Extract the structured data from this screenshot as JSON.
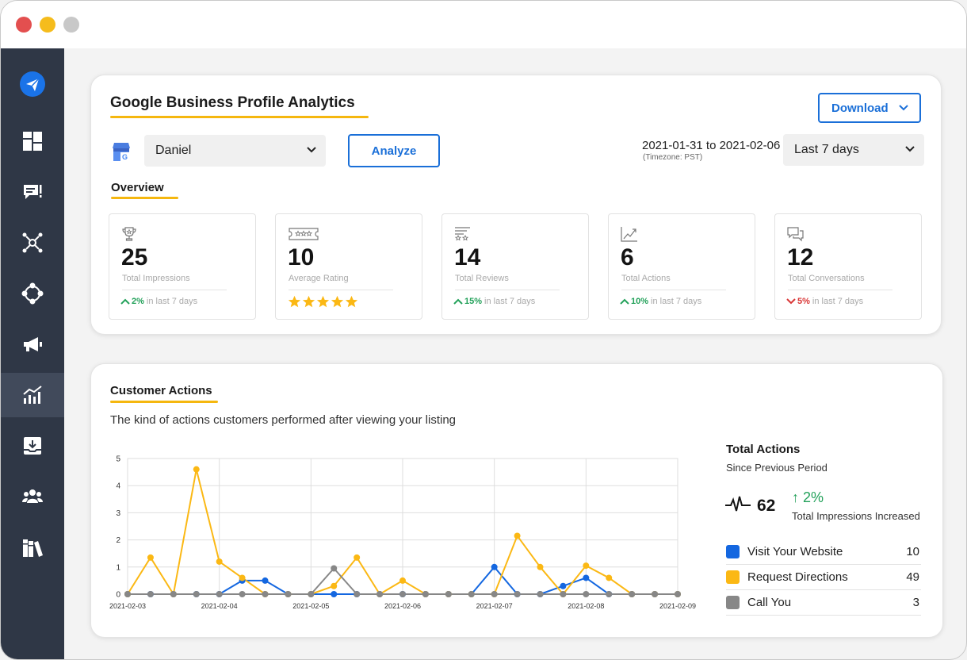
{
  "header": {
    "title": "Google Business Profile Analytics",
    "download_label": "Download"
  },
  "filters": {
    "profile_value": "Daniel",
    "analyze_label": "Analyze",
    "date_range": "2021-01-31 to 2021-02-06",
    "timezone": "(Timezone: PST)",
    "period_value": "Last 7 days"
  },
  "overview": {
    "title": "Overview",
    "stats": [
      {
        "value": "25",
        "label": "Total Impressions",
        "trend": "up",
        "pct": "2%",
        "suffix": "in last 7 days",
        "icon": "trophy-icon"
      },
      {
        "value": "10",
        "label": "Average Rating",
        "stars": 5,
        "icon": "rating-badge-icon"
      },
      {
        "value": "14",
        "label": "Total Reviews",
        "trend": "up",
        "pct": "15%",
        "suffix": "in last 7 days",
        "icon": "reviews-icon"
      },
      {
        "value": "6",
        "label": "Total Actions",
        "trend": "up",
        "pct": "10%",
        "suffix": "in last 7 days",
        "icon": "line-chart-icon"
      },
      {
        "value": "12",
        "label": "Total Conversations",
        "trend": "down",
        "pct": "5%",
        "suffix": "in last 7 days",
        "icon": "chat-bubbles-icon"
      }
    ]
  },
  "customer_actions": {
    "title": "Customer Actions",
    "subtitle": "The kind of actions customers performed after viewing your listing",
    "summary": {
      "title": "Total Actions",
      "subtitle": "Since Previous Period",
      "total": "62",
      "change": "↑ 2%",
      "change_label": "Total Impressions Increased"
    },
    "legend": [
      {
        "name": "Visit Your Website",
        "value": "10",
        "color": "#1467e0"
      },
      {
        "name": "Request Directions",
        "value": "49",
        "color": "#fbb814"
      },
      {
        "name": "Call You",
        "value": "3",
        "color": "#878787"
      }
    ]
  },
  "colors": {
    "accent": "#1a6fd8",
    "underline": "#f5b70f",
    "sidebar": "#2f3746",
    "up": "#23a15a",
    "down": "#d93636"
  },
  "chart_data": {
    "type": "line",
    "x_tick_labels": [
      "2021-02-03",
      "2021-02-04",
      "2021-02-05",
      "2021-02-06",
      "2021-02-07",
      "2021-02-08",
      "2021-02-09"
    ],
    "x_range": [
      0,
      24
    ],
    "ylim": [
      0,
      5
    ],
    "yticks": [
      0,
      1,
      2,
      3,
      4,
      5
    ],
    "grid": true,
    "series": [
      {
        "name": "Visit Your Website",
        "color": "#1467e0",
        "values": [
          0,
          0,
          0,
          0,
          0,
          0.5,
          0.5,
          0,
          0,
          0,
          0,
          0,
          0,
          0,
          0,
          0,
          1,
          0,
          0,
          0.3,
          0.6,
          0,
          0,
          0,
          0
        ]
      },
      {
        "name": "Request Directions",
        "color": "#fbb814",
        "values": [
          0,
          1.35,
          0,
          4.6,
          1.2,
          0.6,
          0,
          0,
          0,
          0.3,
          1.35,
          0,
          0.5,
          0,
          0,
          0,
          0,
          2.15,
          1,
          0,
          1.05,
          0.6,
          0,
          0,
          0
        ]
      },
      {
        "name": "Call You",
        "color": "#878787",
        "values": [
          0,
          0,
          0,
          0,
          0,
          0,
          0,
          0,
          0,
          0.95,
          0,
          0,
          0,
          0,
          0,
          0,
          0,
          0,
          0,
          0,
          0,
          0,
          0,
          0,
          0
        ]
      }
    ]
  }
}
